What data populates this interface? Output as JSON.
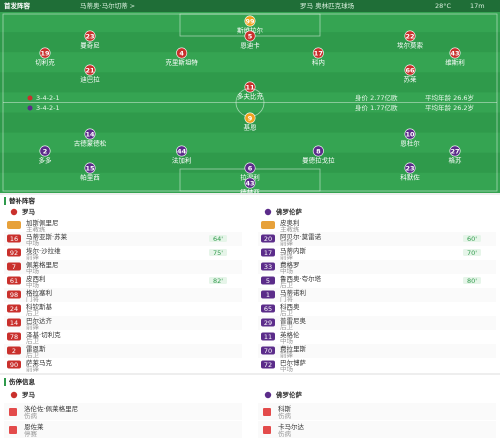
{
  "header": {
    "title": "首发阵容",
    "referee": "马蒂奥·马尔切蒂 >",
    "venue": "罗马 奥林匹克球场",
    "temperature": "28°C",
    "wind": "17m"
  },
  "pitch": {
    "home": {
      "name": "罗马",
      "formation": "3-4-2-1",
      "value": "身价 2.77亿欧",
      "age": "平均年龄 26.6岁",
      "lines": [
        [
          {
            "number": 99,
            "name": "斯维拉尔"
          }
        ],
        [
          {
            "number": 23,
            "name": "曼奇尼"
          },
          {
            "number": 5,
            "name": "恩迪卡"
          },
          {
            "number": 22,
            "name": "埃尔莫索"
          }
        ],
        [
          {
            "number": 19,
            "name": "切利克"
          },
          {
            "number": 4,
            "name": "克里斯坦特"
          },
          {
            "number": 17,
            "name": "科内"
          },
          {
            "number": 43,
            "name": "维斯利"
          }
        ],
        [
          {
            "number": 21,
            "name": "迪巴拉"
          },
          {
            "number": 66,
            "name": "苏莱"
          }
        ],
        [
          {
            "number": 11,
            "name": "多夫比克"
          }
        ]
      ]
    },
    "away": {
      "name": "佛罗伦萨",
      "formation": "3-4-2-1",
      "value": "身价 1.77亿欧",
      "age": "平均年龄 26.2岁",
      "lines": [
        [
          {
            "number": 9,
            "name": "基恩"
          }
        ],
        [
          {
            "number": 14,
            "name": "古德蒙德松"
          },
          {
            "number": 10,
            "name": "恩杜尔"
          }
        ],
        [
          {
            "number": 2,
            "name": "多多"
          },
          {
            "number": 44,
            "name": "法加利"
          },
          {
            "number": 8,
            "name": "曼德拉戈拉"
          },
          {
            "number": 27,
            "name": "格苏"
          }
        ],
        [
          {
            "number": 15,
            "name": "帕里西"
          },
          {
            "number": 6,
            "name": "拉涅利"
          },
          {
            "number": 23,
            "name": "科默佐"
          }
        ],
        [
          {
            "number": 43,
            "name": "德赫亚"
          }
        ]
      ]
    }
  },
  "substitutes": {
    "title": "替补阵容",
    "home": {
      "name": "罗马",
      "coach": {
        "name": "加斯佩里尼",
        "role": "主教练"
      },
      "players": [
        {
          "number": 16,
          "name": "马蒂亚斯·苏莱",
          "position": "中场",
          "event": "64'"
        },
        {
          "number": 92,
          "name": "埃尔·沙拉维",
          "position": "前锋",
          "event": "75'"
        },
        {
          "number": 7,
          "name": "佩莱格里尼",
          "position": "中场"
        },
        {
          "number": 61,
          "name": "皮西利",
          "position": "中场",
          "event": "82'"
        },
        {
          "number": 98,
          "name": "格拉塞利",
          "position": "门将"
        },
        {
          "number": 24,
          "name": "科钦斯基",
          "position": "后卫"
        },
        {
          "number": 14,
          "name": "巴尔达齐",
          "position": "前锋"
        },
        {
          "number": 78,
          "name": "泽基·切利克",
          "position": "后卫"
        },
        {
          "number": 2,
          "name": "雷恩斯",
          "position": "后卫"
        },
        {
          "number": 90,
          "name": "萨莱马克",
          "position": "前锋"
        }
      ]
    },
    "away": {
      "name": "佛罗伦萨",
      "coach": {
        "name": "皮奥利",
        "role": "主教练"
      },
      "players": [
        {
          "number": 20,
          "name": "阿贝尔·莫雷诺",
          "position": "前锋",
          "event": "60'"
        },
        {
          "number": 17,
          "name": "马蒂内斯",
          "position": "前锋",
          "event": "70'"
        },
        {
          "number": 33,
          "name": "费格罗",
          "position": "中场"
        },
        {
          "number": 5,
          "name": "鲁西奥·夸尔塔",
          "position": "后卫",
          "event": "80'"
        },
        {
          "number": 1,
          "name": "马蒂诺利",
          "position": "门将"
        },
        {
          "number": 65,
          "name": "科西奥",
          "position": "后卫"
        },
        {
          "number": 29,
          "name": "普雷尼奥",
          "position": "后卫"
        },
        {
          "number": 11,
          "name": "英格伦",
          "position": "中场"
        },
        {
          "number": 70,
          "name": "费拉里斯",
          "position": "前锋"
        },
        {
          "number": 72,
          "name": "巴尔博萨",
          "position": "中场"
        }
      ]
    }
  },
  "injuries": {
    "title": "伤停信息",
    "home": {
      "name": "罗马",
      "players": [
        {
          "name": "洛伦佐·佩莱格里尼",
          "reason": "伤病"
        },
        {
          "name": "恩佐莱",
          "reason": "停赛"
        }
      ]
    },
    "away": {
      "name": "佛罗伦萨",
      "players": [
        {
          "name": "科斯",
          "reason": "伤病"
        },
        {
          "name": "卡马尔达",
          "reason": "伤病"
        }
      ]
    }
  }
}
